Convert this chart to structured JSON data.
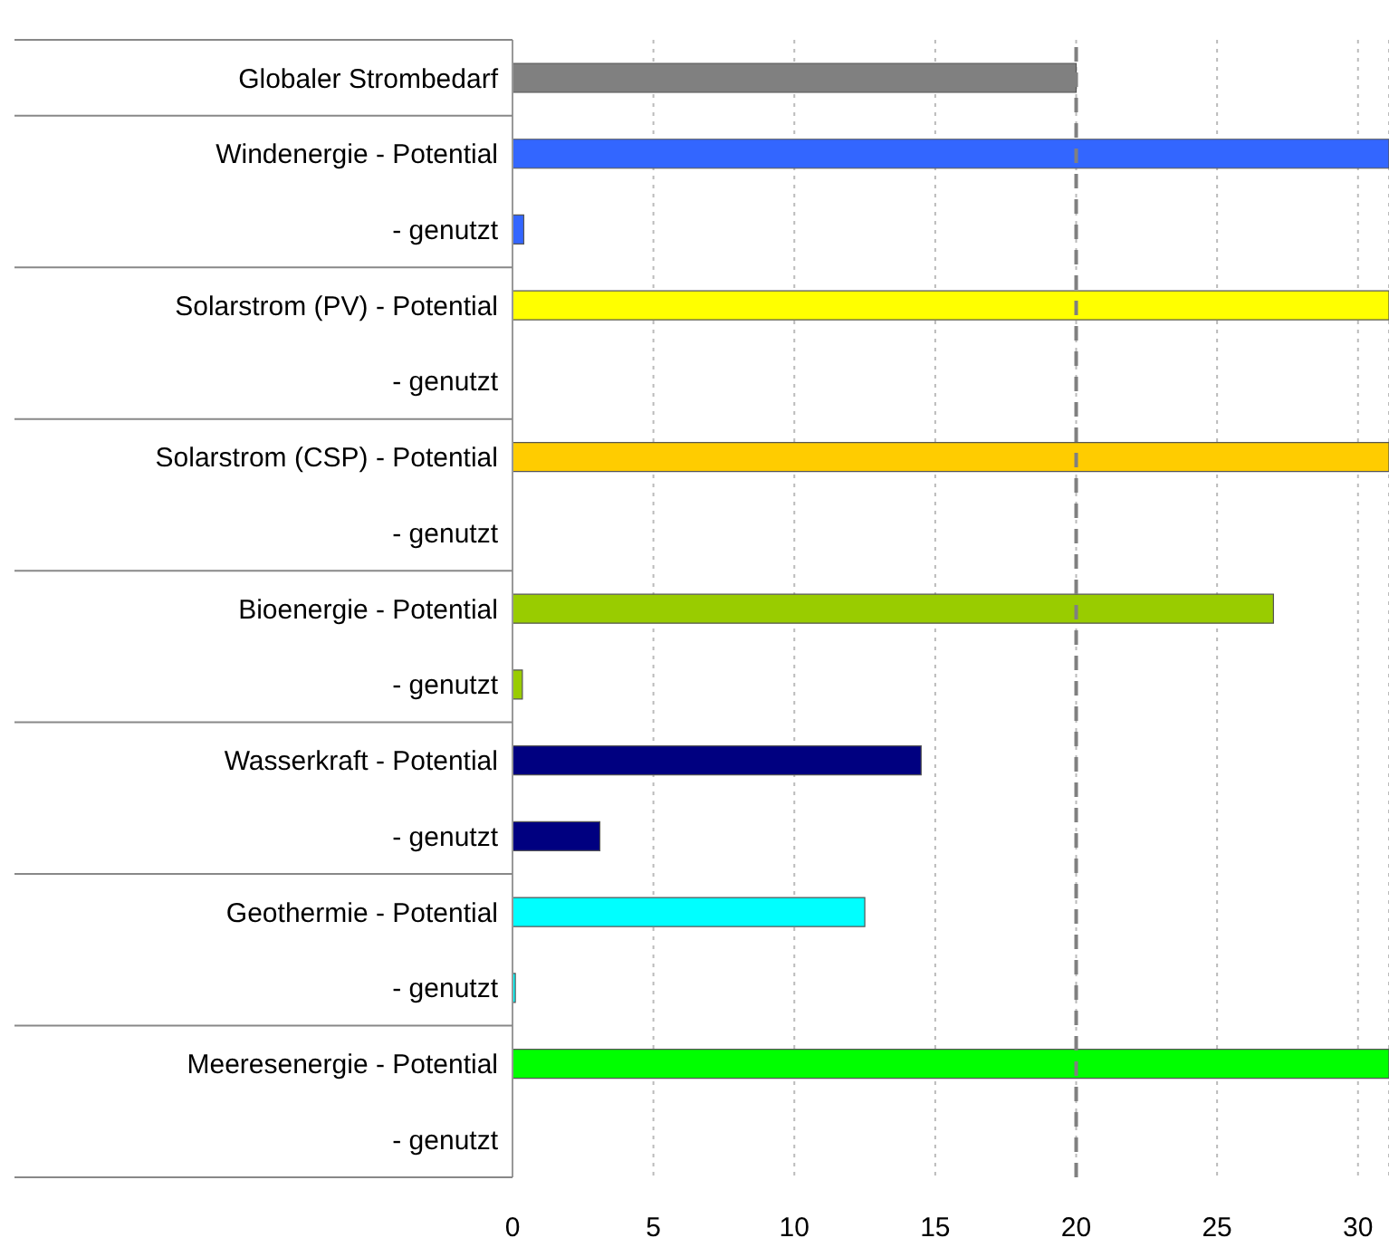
{
  "chart_data": {
    "type": "bar",
    "orientation": "horizontal",
    "categories": [
      "Globaler Strombedarf",
      "Windenergie - Potential",
      "- genutzt",
      "Solarstrom (PV) - Potential",
      "- genutzt",
      "Solarstrom (CSP) - Potential",
      "- genutzt",
      "Bioenergie - Potential",
      "- genutzt",
      "Wasserkraft - Potential",
      "- genutzt",
      "Geothermie - Potential",
      "- genutzt",
      "Meeresenergie - Potential",
      "- genutzt"
    ],
    "values": [
      20,
      31.1,
      0.4,
      31.1,
      0,
      31.1,
      0,
      27,
      0.35,
      14.5,
      3.1,
      12.5,
      0.1,
      31.1,
      0
    ],
    "colors": [
      "#808080",
      "#3366ff",
      "#3366ff",
      "#ffff00",
      "#ffff00",
      "#ffcc00",
      "#ffcc00",
      "#99cc00",
      "#99cc00",
      "#000080",
      "#000080",
      "#00ffff",
      "#00ffff",
      "#00ff00",
      "#00ff00"
    ],
    "xlim": [
      0,
      31.1
    ],
    "xticks": [
      0,
      5,
      10,
      15,
      20,
      25,
      30
    ],
    "grid": "x",
    "ref_lines": [
      {
        "axis": "x",
        "value": 20,
        "color": "#808080",
        "line_style": "dashed"
      }
    ]
  }
}
